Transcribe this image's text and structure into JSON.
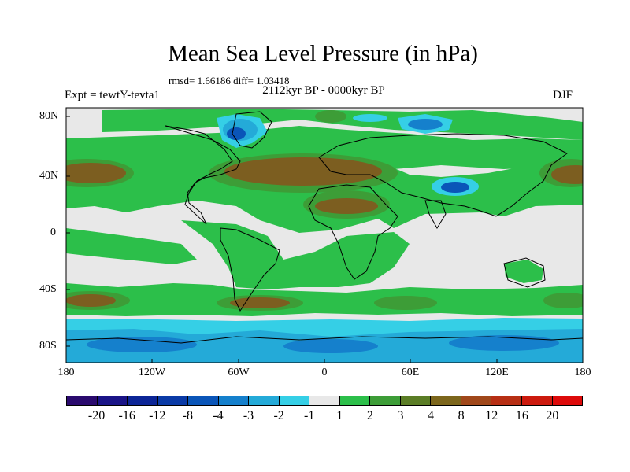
{
  "title": "Mean Sea Level Pressure (in hPa)",
  "stats": "rmsd= 1.66186 diff= 1.03418",
  "experiment": "Expt = tewtY-tevta1",
  "period": "2112kyr BP - 0000kyr BP",
  "season": "DJF",
  "lon_labels": [
    "180",
    "120W",
    "60W",
    "0",
    "60E",
    "120E",
    "180"
  ],
  "lat_labels": [
    "80N",
    "40N",
    "0",
    "40S",
    "80S"
  ],
  "colorbar": {
    "labels": [
      "-20",
      "-16",
      "-12",
      "-8",
      "-4",
      "-3",
      "-2",
      "-1",
      "1",
      "2",
      "3",
      "4",
      "8",
      "12",
      "16",
      "20"
    ],
    "colors": [
      "#2a0a6e",
      "#1a1487",
      "#0c2596",
      "#0a3aa6",
      "#0a55b8",
      "#1580cc",
      "#24aad8",
      "#35cfe6",
      "#e8e8e8",
      "#2cbf4a",
      "#3d9d37",
      "#5b7d26",
      "#7c661c",
      "#a0481a",
      "#b72f14",
      "#cc1a0e",
      "#dd0a0a"
    ]
  },
  "colors": {
    "neutral": "#e8e8e8",
    "green": "#2cbf4a",
    "dark_green": "#3d9d37",
    "brown": "#7c5e20",
    "light_blue": "#35cfe6",
    "mid_blue": "#24aad8",
    "blue": "#1580cc",
    "deep_blue": "#0a55b8"
  }
}
